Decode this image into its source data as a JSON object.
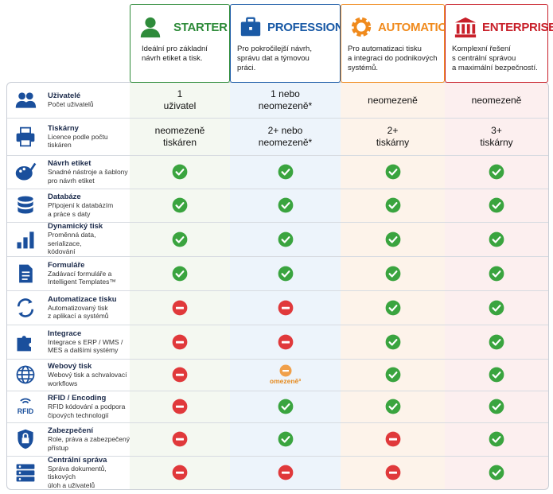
{
  "plans": [
    {
      "name": "STARTER",
      "description": "Ideální pro základní\nnávrh etiket a tisk."
    },
    {
      "name": "PROFESSIONAL",
      "description": "Pro pokročilejší návrh,\nsprávu dat a týmovou\npráci."
    },
    {
      "name": "AUTOMATION",
      "description": "Pro automatizaci tisku\na integraci do podnikových\nsystémů."
    },
    {
      "name": "ENTERPRISE",
      "description": "Komplexní řešení\ns centrální správou\na maximální bezpečností."
    }
  ],
  "rows": [
    {
      "title": "Uživatelé",
      "subtitle": "Počet uživatelů",
      "cells": [
        {
          "text": "1\nuživatel"
        },
        {
          "text": "1 nebo\nneomezeně*"
        },
        {
          "text": "neomezeně"
        },
        {
          "text": "neomezeně"
        }
      ]
    },
    {
      "title": "Tiskárny",
      "subtitle": "Licence podle počtu\ntiskáren",
      "cells": [
        {
          "text": "neomezeně\ntiskáren"
        },
        {
          "text": "2+ nebo\nneomezeně*"
        },
        {
          "text": "2+\ntiskárny"
        },
        {
          "text": "3+\ntiskárny"
        }
      ]
    },
    {
      "title": "Návrh etiket",
      "subtitle": "Snadné nástroje a šablony\npro návrh etiket",
      "cells": [
        {
          "status": "yes"
        },
        {
          "status": "yes"
        },
        {
          "status": "yes"
        },
        {
          "status": "yes"
        }
      ]
    },
    {
      "title": "Databáze",
      "subtitle": "Připojení k databázím\na práce s daty",
      "cells": [
        {
          "status": "yes"
        },
        {
          "status": "yes"
        },
        {
          "status": "yes"
        },
        {
          "status": "yes"
        }
      ]
    },
    {
      "title": "Dynamický tisk",
      "subtitle": "Proměnná data, serializace,\nkódování",
      "cells": [
        {
          "status": "yes"
        },
        {
          "status": "yes"
        },
        {
          "status": "yes"
        },
        {
          "status": "yes"
        }
      ]
    },
    {
      "title": "Formuláře",
      "subtitle": "Zadávací formuláře a\nIntelligent Templates™",
      "cells": [
        {
          "status": "yes"
        },
        {
          "status": "yes"
        },
        {
          "status": "yes"
        },
        {
          "status": "yes"
        }
      ]
    },
    {
      "title": "Automatizace tisku",
      "subtitle": "Automatizovaný tisk\nz aplikací a systémů",
      "cells": [
        {
          "status": "no"
        },
        {
          "status": "no"
        },
        {
          "status": "yes"
        },
        {
          "status": "yes"
        }
      ]
    },
    {
      "title": "Integrace",
      "subtitle": "Integrace s ERP / WMS /\nMES a dalšími systémy",
      "cells": [
        {
          "status": "no"
        },
        {
          "status": "no"
        },
        {
          "status": "yes"
        },
        {
          "status": "yes"
        }
      ]
    },
    {
      "title": "Webový tisk",
      "subtitle": "Webový tisk a schvalovací\nworkflows",
      "cells": [
        {
          "status": "no"
        },
        {
          "status": "limited",
          "label": "omezeně³"
        },
        {
          "status": "yes"
        },
        {
          "status": "yes"
        }
      ]
    },
    {
      "title": "RFID / Encoding",
      "subtitle": "RFID kódování a podpora\nčipových technologií",
      "cells": [
        {
          "status": "no"
        },
        {
          "status": "yes"
        },
        {
          "status": "yes"
        },
        {
          "status": "yes"
        }
      ]
    },
    {
      "title": "Zabezpečení",
      "subtitle": "Role, práva a zabezpečený\npřístup",
      "cells": [
        {
          "status": "no"
        },
        {
          "status": "yes"
        },
        {
          "status": "no"
        },
        {
          "status": "yes"
        }
      ]
    },
    {
      "title": "Centrální správa",
      "subtitle": "Správa dokumentů, tiskových\núloh a uživatelů",
      "cells": [
        {
          "status": "no"
        },
        {
          "status": "no"
        },
        {
          "status": "no"
        },
        {
          "status": "yes"
        }
      ]
    }
  ]
}
